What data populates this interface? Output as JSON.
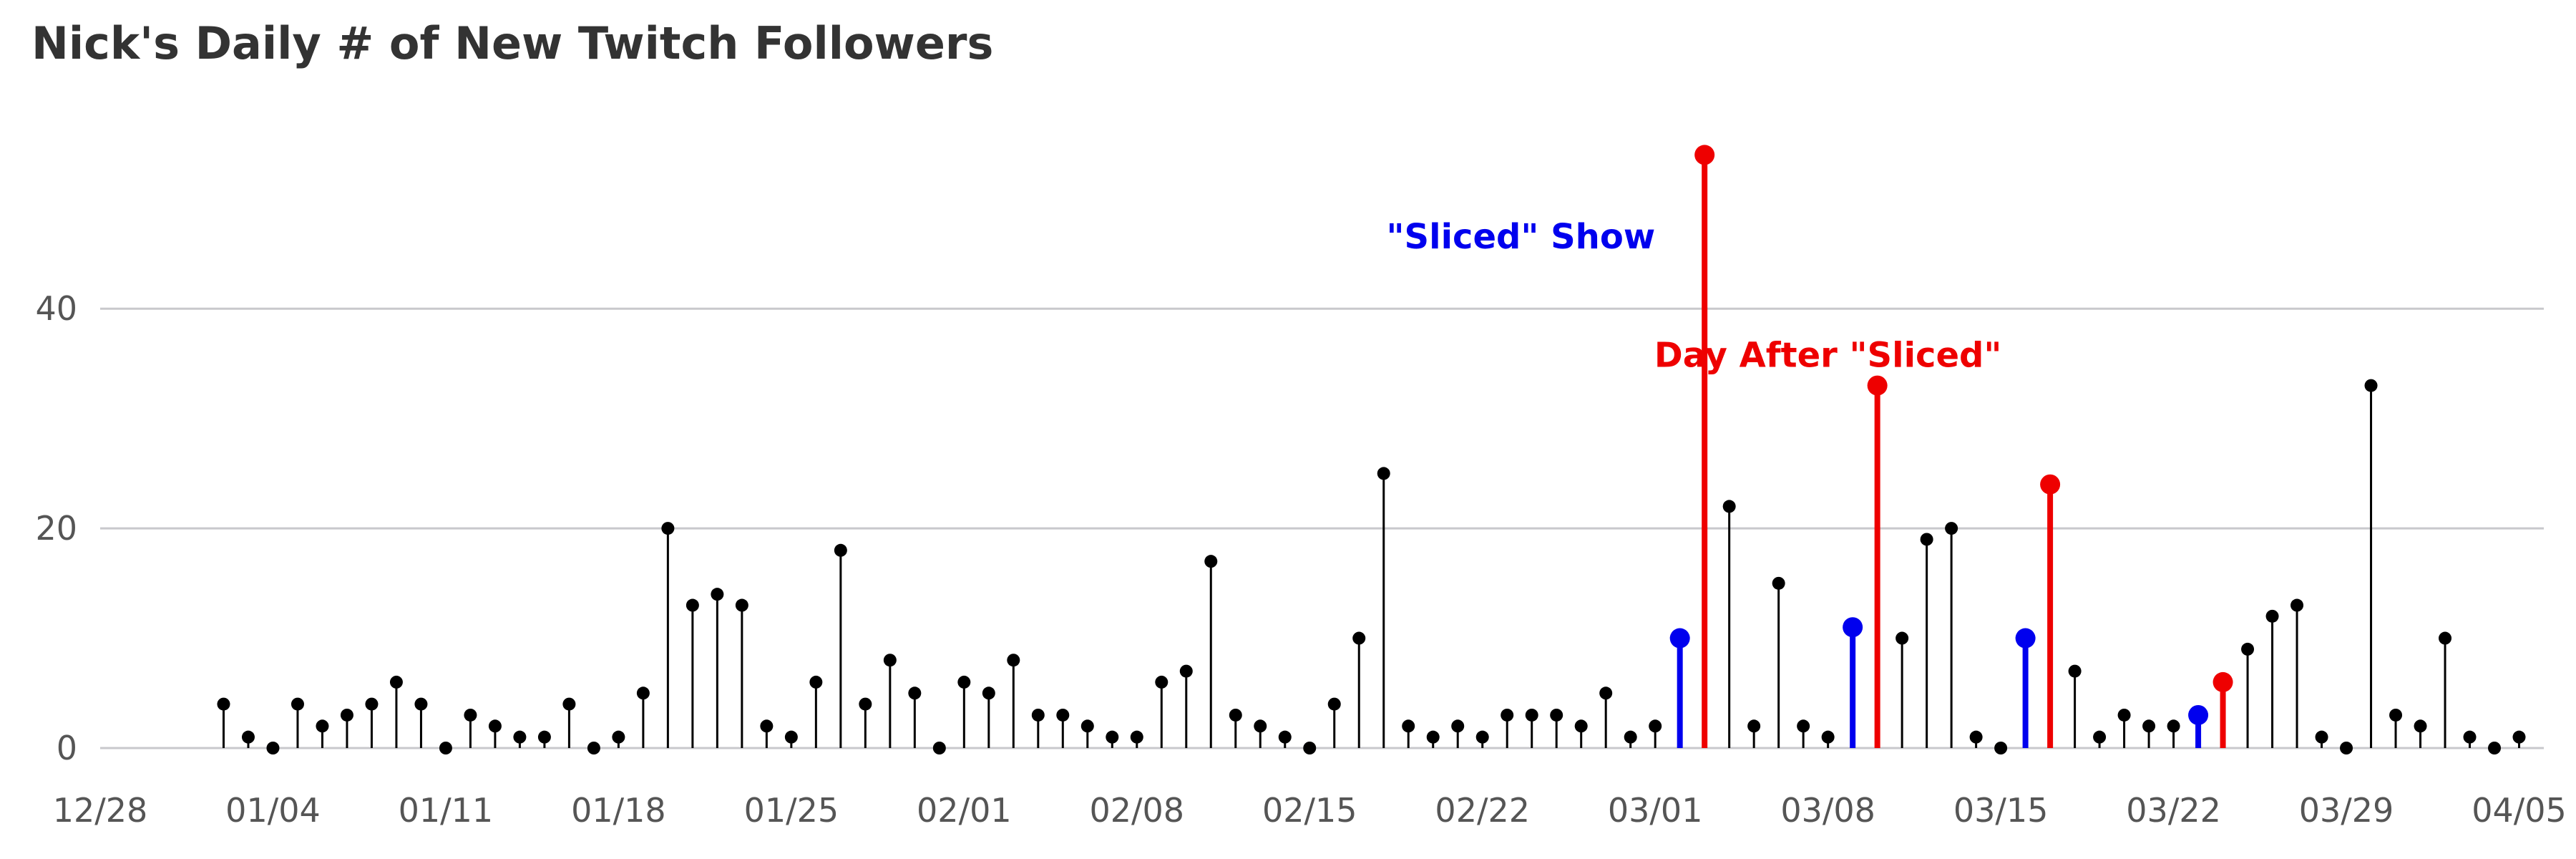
{
  "chart_data": {
    "type": "lollipop",
    "title": "Nick's Daily # of New Twitch Followers",
    "xlabel": "",
    "ylabel": "",
    "x_start": "2021-01-02",
    "x_end": "2021-04-04",
    "xlim": [
      "2020-12-28",
      "2021-04-06"
    ],
    "ylim": [
      0,
      58
    ],
    "y_ticks": [
      0,
      20,
      40
    ],
    "x_ticks": [
      {
        "date": "2020-12-28",
        "label": "12/28"
      },
      {
        "date": "2021-01-04",
        "label": "01/04"
      },
      {
        "date": "2021-01-11",
        "label": "01/11"
      },
      {
        "date": "2021-01-18",
        "label": "01/18"
      },
      {
        "date": "2021-01-25",
        "label": "01/25"
      },
      {
        "date": "2021-02-01",
        "label": "02/01"
      },
      {
        "date": "2021-02-08",
        "label": "02/08"
      },
      {
        "date": "2021-02-15",
        "label": "02/15"
      },
      {
        "date": "2021-02-22",
        "label": "02/22"
      },
      {
        "date": "2021-03-01",
        "label": "03/01"
      },
      {
        "date": "2021-03-08",
        "label": "03/08"
      },
      {
        "date": "2021-03-15",
        "label": "03/15"
      },
      {
        "date": "2021-03-22",
        "label": "03/22"
      },
      {
        "date": "2021-03-29",
        "label": "03/29"
      },
      {
        "date": "2021-04-05",
        "label": "04/05"
      }
    ],
    "values": [
      4,
      1,
      0,
      4,
      2,
      3,
      4,
      6,
      4,
      0,
      3,
      2,
      1,
      1,
      4,
      0,
      1,
      5,
      20,
      13,
      14,
      13,
      2,
      1,
      6,
      18,
      4,
      8,
      5,
      0,
      6,
      5,
      8,
      3,
      3,
      2,
      1,
      1,
      6,
      7,
      17,
      3,
      2,
      1,
      0,
      4,
      10,
      25,
      2,
      1,
      2,
      1,
      3,
      3,
      3,
      2,
      5,
      1,
      2,
      10,
      54,
      22,
      2,
      15,
      2,
      1,
      11,
      33,
      10,
      19,
      20,
      1,
      0,
      10,
      24,
      7,
      1,
      3,
      2,
      2,
      3,
      6,
      9,
      12,
      13,
      1,
      0,
      33,
      3,
      2,
      10,
      1,
      0,
      1
    ],
    "highlights": [
      {
        "date": "2021-03-02",
        "category": "sliced"
      },
      {
        "date": "2021-03-03",
        "category": "day_after"
      },
      {
        "date": "2021-03-09",
        "category": "sliced"
      },
      {
        "date": "2021-03-10",
        "category": "day_after"
      },
      {
        "date": "2021-03-16",
        "category": "sliced"
      },
      {
        "date": "2021-03-17",
        "category": "day_after"
      },
      {
        "date": "2021-03-23",
        "category": "sliced"
      },
      {
        "date": "2021-03-24",
        "category": "day_after"
      }
    ],
    "annotations": [
      {
        "text": "\"Sliced\" Show",
        "category": "sliced",
        "anchor_date": "2021-03-01",
        "anchor_value": 45.5,
        "align": "end"
      },
      {
        "text": "Day After \"Sliced\"",
        "category": "day_after",
        "anchor_date": "2021-03-08",
        "anchor_value": 34.7,
        "align": "middle"
      }
    ],
    "grid": true,
    "legend": "none",
    "colors": {
      "default": "#000000",
      "sliced": "#0000ee",
      "day_after": "#ee0000",
      "grid": "#c8c8cc",
      "axis_text": "#555555",
      "title": "#333333"
    }
  }
}
